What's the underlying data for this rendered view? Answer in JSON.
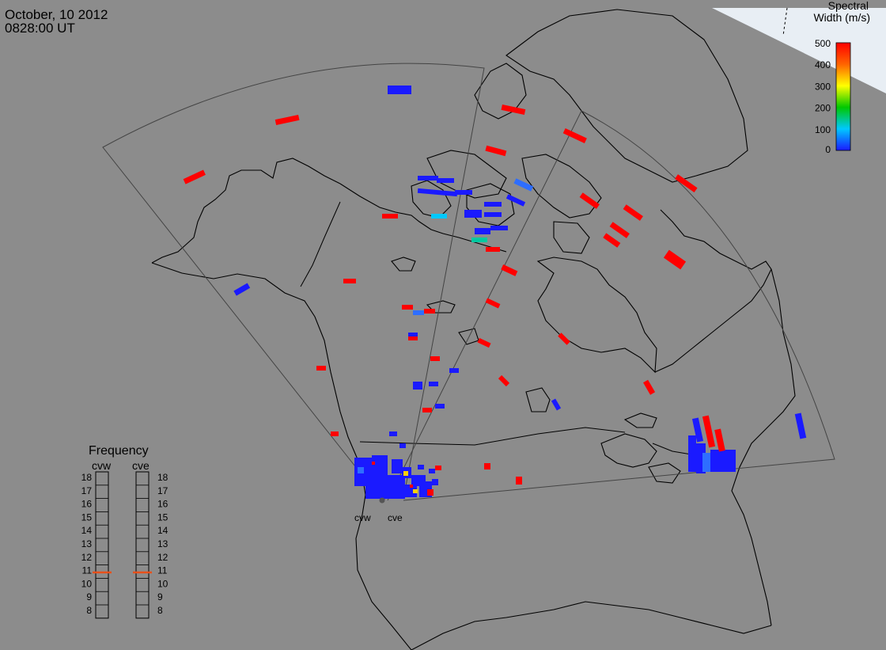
{
  "header": {
    "date": "October, 10 2012",
    "time": "0828:00 UT"
  },
  "colorbar": {
    "title_line1": "Spectral",
    "title_line2": "Width (m/s)",
    "tick_labels": [
      "500",
      "400",
      "300",
      "200",
      "100",
      "0"
    ]
  },
  "frequency_panel": {
    "title": "Frequency",
    "radar_labels": [
      "cvw",
      "cve"
    ],
    "tick_labels": [
      "18",
      "17",
      "16",
      "15",
      "14",
      "13",
      "12",
      "11",
      "10",
      "9",
      "8"
    ],
    "cvw_frequency_mhz": 10.8,
    "cve_frequency_mhz": 10.8,
    "marker_color": "#e8501a"
  },
  "radar_sites": {
    "labels": [
      "cvw",
      "cve"
    ]
  },
  "colors": {
    "background": "#8c8c8c",
    "ocean_light": "#e8eef4",
    "coast": "#000000",
    "fov": "#444444"
  }
}
